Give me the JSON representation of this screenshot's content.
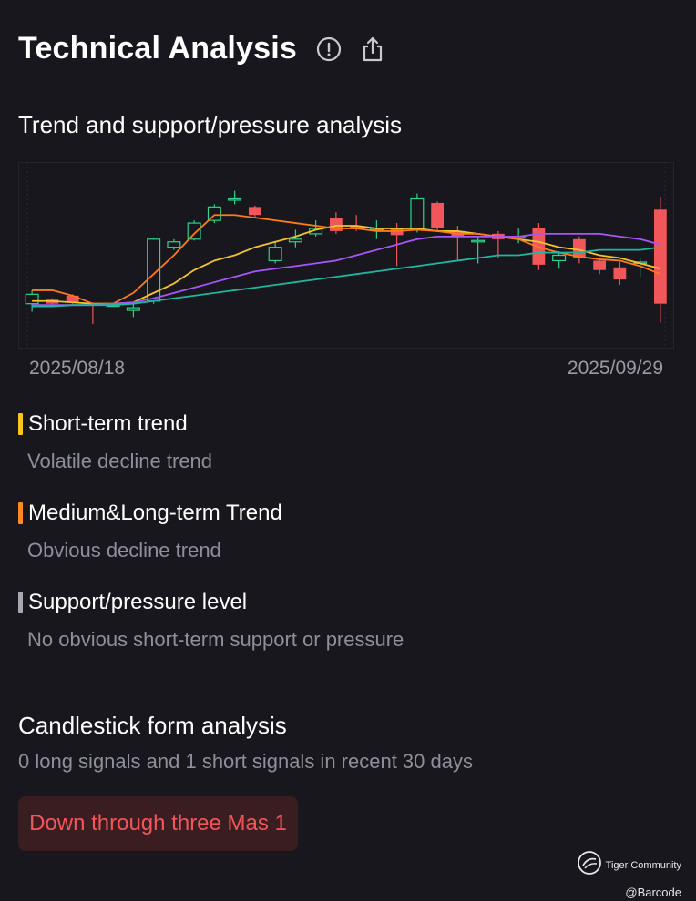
{
  "header": {
    "title": "Technical Analysis",
    "info_icon": "info-circle-icon",
    "share_icon": "share-icon"
  },
  "trend_section": {
    "title": "Trend and support/pressure analysis",
    "date_start": "2025/08/18",
    "date_end": "2025/09/29"
  },
  "chart_data": {
    "type": "candlestick",
    "x_range": [
      "2025/08/18",
      "2025/09/29"
    ],
    "y_range_normalized": [
      0,
      100
    ],
    "candles": [
      {
        "o": 30,
        "c": 37,
        "h": 40,
        "l": 24
      },
      {
        "o": 33,
        "c": 30,
        "h": 34,
        "l": 29
      },
      {
        "o": 36,
        "c": 31,
        "h": 37,
        "l": 30
      },
      {
        "o": 30,
        "c": 29,
        "h": 31,
        "l": 15
      },
      {
        "o": 28,
        "c": 29,
        "h": 30,
        "l": 28
      },
      {
        "o": 25,
        "c": 27,
        "h": 31,
        "l": 20
      },
      {
        "o": 32,
        "c": 78,
        "h": 79,
        "l": 30
      },
      {
        "o": 72,
        "c": 76,
        "h": 78,
        "l": 70
      },
      {
        "o": 78,
        "c": 90,
        "h": 92,
        "l": 77
      },
      {
        "o": 92,
        "c": 102,
        "h": 104,
        "l": 90
      },
      {
        "o": 108,
        "c": 108,
        "h": 114,
        "l": 104
      },
      {
        "o": 102,
        "c": 96,
        "h": 103,
        "l": 94
      },
      {
        "o": 62,
        "c": 72,
        "h": 76,
        "l": 60
      },
      {
        "o": 76,
        "c": 78,
        "h": 85,
        "l": 72
      },
      {
        "o": 82,
        "c": 86,
        "h": 92,
        "l": 80
      },
      {
        "o": 94,
        "c": 84,
        "h": 98,
        "l": 82
      },
      {
        "o": 88,
        "c": 86,
        "h": 96,
        "l": 84
      },
      {
        "o": 85,
        "c": 86,
        "h": 92,
        "l": 78
      },
      {
        "o": 86,
        "c": 81,
        "h": 90,
        "l": 58
      },
      {
        "o": 85,
        "c": 108,
        "h": 112,
        "l": 83
      },
      {
        "o": 105,
        "c": 86,
        "h": 106,
        "l": 84
      },
      {
        "o": 84,
        "c": 80,
        "h": 88,
        "l": 62
      },
      {
        "o": 77,
        "c": 77,
        "h": 80,
        "l": 60
      },
      {
        "o": 82,
        "c": 78,
        "h": 84,
        "l": 64
      },
      {
        "o": 80,
        "c": 80,
        "h": 86,
        "l": 75
      },
      {
        "o": 86,
        "c": 59,
        "h": 90,
        "l": 55
      },
      {
        "o": 62,
        "c": 66,
        "h": 69,
        "l": 56
      },
      {
        "o": 78,
        "c": 64,
        "h": 80,
        "l": 60
      },
      {
        "o": 62,
        "c": 55,
        "h": 64,
        "l": 52
      },
      {
        "o": 57,
        "c": 48,
        "h": 61,
        "l": 44
      },
      {
        "o": 60,
        "c": 61,
        "h": 64,
        "l": 50
      },
      {
        "o": 100,
        "c": 30,
        "h": 109,
        "l": 16
      }
    ],
    "ma_lines": [
      {
        "name": "MA5",
        "color": "#f4c430",
        "values": [
          32,
          32,
          31,
          30,
          30,
          31,
          38,
          45,
          55,
          62,
          66,
          72,
          76,
          80,
          85,
          88,
          88,
          86,
          86,
          86,
          84,
          84,
          82,
          80,
          78,
          76,
          72,
          70,
          66,
          64,
          60,
          56
        ]
      },
      {
        "name": "MA10",
        "color": "#ff7a1a",
        "values": [
          40,
          40,
          36,
          30,
          30,
          38,
          52,
          66,
          82,
          96,
          96,
          94,
          92,
          90,
          88,
          86,
          86,
          84,
          84,
          85,
          84,
          82,
          82,
          80,
          78,
          72,
          68,
          65,
          63,
          62,
          58,
          52
        ]
      },
      {
        "name": "MA20",
        "color": "#a855f7",
        "values": [
          29,
          29,
          29,
          29,
          30,
          31,
          34,
          38,
          42,
          46,
          50,
          54,
          56,
          58,
          60,
          62,
          66,
          70,
          74,
          78,
          80,
          80,
          80,
          80,
          80,
          82,
          82,
          82,
          82,
          80,
          78,
          74
        ]
      },
      {
        "name": "MA30",
        "color": "#1fb6a0",
        "values": [
          28,
          28,
          29,
          29,
          29,
          30,
          32,
          34,
          36,
          38,
          40,
          42,
          44,
          46,
          48,
          50,
          52,
          54,
          56,
          58,
          60,
          62,
          64,
          66,
          66,
          68,
          68,
          68,
          70,
          70,
          70,
          72
        ]
      }
    ],
    "up_color": "#2bd48a",
    "down_color": "#f0565a"
  },
  "trends": [
    {
      "title": "Short-term trend",
      "desc": "Volatile decline trend",
      "color": "#f8c51c"
    },
    {
      "title": "Medium&Long-term Trend",
      "desc": "Obvious decline trend",
      "color": "#ff8a1f"
    },
    {
      "title": "Support/pressure level",
      "desc": "No obvious short-term support or pressure",
      "color": "#a6a8b3"
    }
  ],
  "candlestick_form": {
    "title": "Candlestick form analysis",
    "summary": "0 long signals and 1 short signals in recent 30 days",
    "signal": "Down through three Mas 1"
  },
  "watermark": {
    "brand": "Tiger Community",
    "user": "@Barcode",
    "icon": "tiger-logo-icon"
  }
}
